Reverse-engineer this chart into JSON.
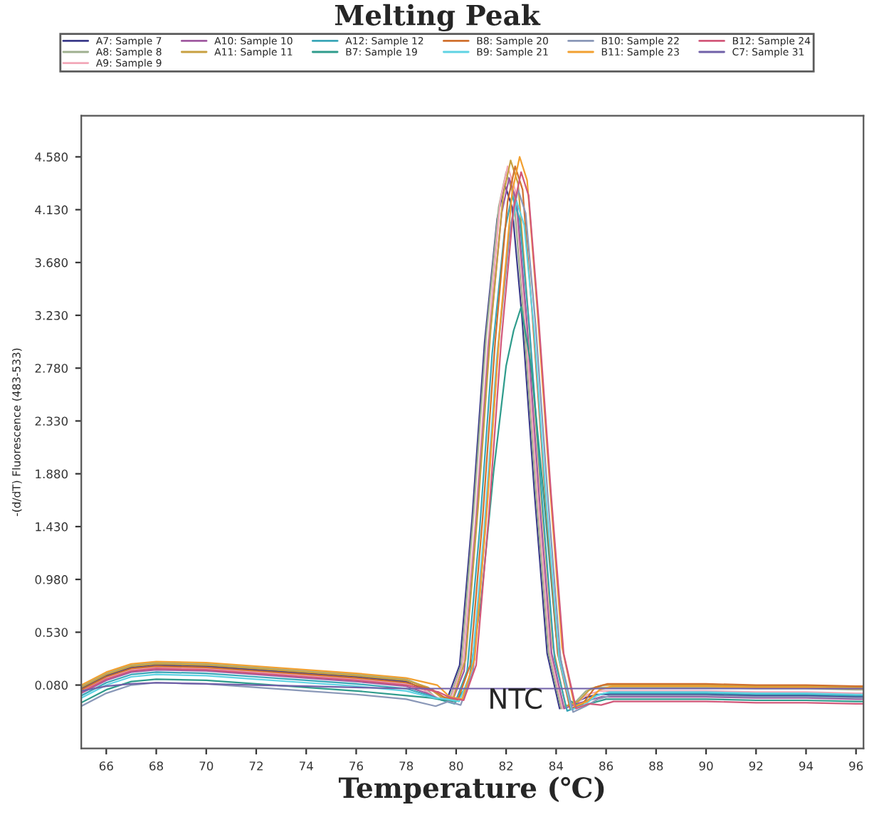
{
  "chart_data": {
    "type": "line",
    "title": "Melting Peak",
    "xlabel": "Temperature (℃)",
    "ylabel": "-(d/dT) Fluorescence (483-533)",
    "x": [
      65,
      66,
      67,
      68,
      70,
      72,
      74,
      76,
      78,
      79,
      79.5,
      80,
      80.5,
      81,
      81.5,
      82,
      82.3,
      82.6,
      83,
      83.5,
      84,
      84.5,
      85,
      85.5,
      86,
      88,
      90,
      92,
      94,
      96,
      96.3
    ],
    "series": [
      {
        "name": "A7: Sample 7",
        "color": "#3a3a8a",
        "x": [
          65,
          66,
          67,
          68,
          70,
          72,
          74,
          76,
          78,
          78.64,
          79.14,
          79.64,
          80.14,
          80.64,
          81.14,
          81.64,
          81.94,
          82.24,
          82.64,
          83.14,
          83.64,
          84.14,
          84.64,
          85.14,
          85.64,
          88,
          90,
          92,
          94,
          96,
          96.3
        ],
        "values": [
          0.05,
          0.16,
          0.23,
          0.25,
          0.24,
          0.21,
          0.18,
          0.15,
          0.11,
          0.05,
          -0.03,
          -0.04,
          0.25,
          1.5,
          3.0,
          4.05,
          4.35,
          4.15,
          3.2,
          1.7,
          0.35,
          -0.12,
          -0.08,
          -0.03,
          0.0,
          0.0,
          0.0,
          -0.01,
          -0.01,
          -0.02,
          -0.02
        ]
      },
      {
        "name": "A8: Sample 8",
        "color": "#9fb08f",
        "x": [
          65,
          66,
          67,
          68,
          70,
          72,
          74,
          76,
          78,
          78.7,
          79.2,
          79.7,
          80.2,
          80.7,
          81.2,
          81.7,
          82.0,
          82.3,
          82.7,
          83.2,
          83.7,
          84.2,
          84.7,
          85.2,
          85.7,
          88,
          90,
          92,
          94,
          96,
          96.3
        ],
        "values": [
          0.07,
          0.18,
          0.25,
          0.27,
          0.26,
          0.23,
          0.2,
          0.17,
          0.13,
          0.07,
          -0.03,
          -0.06,
          0.25,
          1.55,
          3.05,
          4.15,
          4.45,
          4.25,
          3.2,
          1.7,
          0.35,
          -0.12,
          -0.08,
          0.03,
          0.06,
          0.06,
          0.06,
          0.05,
          0.05,
          0.04,
          0.04
        ]
      },
      {
        "name": "A9: Sample 9",
        "color": "#f2a7b8",
        "x": [
          65,
          66,
          67,
          68,
          70,
          72,
          74,
          76,
          78,
          78.76,
          79.26,
          79.76,
          80.26,
          80.76,
          81.26,
          81.76,
          82.06,
          82.36,
          82.76,
          83.26,
          83.76,
          84.26,
          84.76,
          85.26,
          85.76,
          88,
          90,
          92,
          94,
          96,
          96.3
        ],
        "values": [
          0.03,
          0.14,
          0.21,
          0.23,
          0.22,
          0.19,
          0.16,
          0.13,
          0.09,
          0.03,
          -0.03,
          -0.05,
          0.25,
          1.45,
          2.95,
          4.2,
          4.5,
          4.3,
          3.2,
          1.7,
          0.35,
          -0.12,
          -0.08,
          0.0,
          0.03,
          0.03,
          0.03,
          0.02,
          0.02,
          0.01,
          0.01
        ]
      },
      {
        "name": "A10: Sample 10",
        "color": "#a05aa0",
        "x": [
          65,
          66,
          67,
          68,
          70,
          72,
          74,
          76,
          78,
          78.82,
          79.32,
          79.82,
          80.32,
          80.82,
          81.32,
          81.82,
          82.12,
          82.42,
          82.82,
          83.32,
          83.82,
          84.32,
          84.82,
          85.32,
          85.82,
          88,
          90,
          92,
          94,
          96,
          96.3
        ],
        "values": [
          0.01,
          0.12,
          0.19,
          0.21,
          0.2,
          0.17,
          0.14,
          0.11,
          0.07,
          0.01,
          -0.04,
          -0.07,
          0.2,
          1.5,
          3.0,
          4.1,
          4.4,
          4.2,
          3.2,
          1.7,
          0.35,
          -0.12,
          -0.08,
          -0.05,
          -0.02,
          -0.02,
          -0.02,
          -0.03,
          -0.03,
          -0.04,
          -0.04
        ]
      },
      {
        "name": "A11: Sample 11",
        "color": "#c8a040",
        "x": [
          65,
          66,
          67,
          68,
          70,
          72,
          74,
          76,
          78,
          78.88,
          79.38,
          79.88,
          80.38,
          80.88,
          81.38,
          81.88,
          82.18,
          82.48,
          82.88,
          83.38,
          83.88,
          84.38,
          84.88,
          85.38,
          85.88,
          88,
          90,
          92,
          94,
          96,
          96.3
        ],
        "values": [
          0.06,
          0.17,
          0.24,
          0.26,
          0.25,
          0.22,
          0.19,
          0.16,
          0.12,
          0.06,
          -0.02,
          -0.03,
          0.3,
          1.6,
          3.1,
          4.25,
          4.55,
          4.35,
          3.25,
          1.75,
          0.4,
          -0.1,
          -0.06,
          0.05,
          0.08,
          0.08,
          0.08,
          0.07,
          0.07,
          0.06,
          0.06
        ]
      },
      {
        "name": "A12: Sample 12",
        "color": "#3aa6b8",
        "x": [
          65,
          66,
          67,
          68,
          70,
          72,
          74,
          76,
          78,
          78.94,
          79.44,
          79.94,
          80.44,
          80.94,
          81.44,
          81.94,
          82.24,
          82.54,
          82.94,
          83.44,
          83.94,
          84.44,
          84.94,
          85.44,
          85.94,
          88,
          90,
          92,
          94,
          96,
          96.3
        ],
        "values": [
          -0.01,
          0.1,
          0.17,
          0.19,
          0.18,
          0.15,
          0.12,
          0.09,
          0.05,
          -0.01,
          -0.05,
          -0.08,
          0.2,
          1.4,
          2.9,
          3.95,
          4.25,
          4.05,
          3.1,
          1.65,
          0.3,
          -0.14,
          -0.1,
          -0.02,
          0.01,
          0.01,
          0.01,
          0.0,
          0.0,
          -0.01,
          -0.01
        ]
      },
      {
        "name": "B7: Sample 19",
        "color": "#2f9c8c",
        "values": [
          -0.07,
          0.04,
          0.11,
          0.13,
          0.12,
          0.09,
          0.06,
          0.03,
          -0.01,
          -0.03,
          -0.05,
          -0.06,
          0.1,
          0.8,
          1.9,
          2.8,
          3.1,
          3.3,
          2.8,
          1.7,
          0.5,
          -0.05,
          -0.1,
          -0.07,
          -0.04,
          -0.04,
          -0.04,
          -0.05,
          -0.05,
          -0.06,
          -0.06
        ]
      },
      {
        "name": "B8: Sample 20",
        "color": "#d0702e",
        "x": [
          65,
          66,
          67,
          68,
          70,
          72,
          74,
          76,
          78,
          79.06,
          79.56,
          80.06,
          80.56,
          81.06,
          81.56,
          82.06,
          82.36,
          82.66,
          83.06,
          83.56,
          84.06,
          84.56,
          85.06,
          85.56,
          86.06,
          88,
          90,
          92,
          94,
          96,
          96.3
        ],
        "values": [
          0.04,
          0.15,
          0.22,
          0.24,
          0.23,
          0.2,
          0.17,
          0.14,
          0.1,
          0.04,
          -0.03,
          -0.05,
          0.25,
          1.5,
          3.0,
          4.2,
          4.5,
          4.3,
          3.2,
          1.7,
          0.35,
          -0.12,
          -0.08,
          0.06,
          0.09,
          0.09,
          0.09,
          0.08,
          0.08,
          0.07,
          0.07
        ]
      },
      {
        "name": "B9: Sample 21",
        "color": "#5fd3e3",
        "x": [
          65,
          66,
          67,
          68,
          70,
          72,
          74,
          76,
          78,
          79.12,
          79.62,
          80.12,
          80.62,
          81.12,
          81.62,
          82.12,
          82.42,
          82.72,
          83.12,
          83.62,
          84.12,
          84.62,
          85.12,
          85.62,
          86.12,
          88,
          90,
          92,
          94,
          96,
          96.3
        ],
        "values": [
          -0.03,
          0.08,
          0.15,
          0.17,
          0.16,
          0.13,
          0.1,
          0.07,
          0.03,
          -0.03,
          -0.04,
          -0.06,
          0.2,
          1.4,
          2.85,
          3.9,
          4.2,
          4.0,
          3.1,
          1.6,
          0.3,
          -0.13,
          -0.09,
          -0.01,
          0.02,
          0.02,
          0.02,
          0.01,
          0.01,
          0.0,
          0.0
        ]
      },
      {
        "name": "B10: Sample 22",
        "color": "#8a98b8",
        "x": [
          65,
          66,
          67,
          68,
          70,
          72,
          74,
          76,
          78,
          79.18,
          79.68,
          80.18,
          80.68,
          81.18,
          81.68,
          82.18,
          82.48,
          82.78,
          83.18,
          83.68,
          84.18,
          84.68,
          85.18,
          85.68,
          86.18,
          88,
          90,
          92,
          94,
          96,
          96.3
        ],
        "values": [
          -0.1,
          0.01,
          0.08,
          0.1,
          0.09,
          0.06,
          0.03,
          0.0,
          -0.04,
          -0.1,
          -0.06,
          -0.09,
          0.2,
          1.45,
          2.95,
          4.0,
          4.3,
          4.1,
          3.15,
          1.65,
          0.3,
          -0.15,
          -0.1,
          -0.04,
          -0.01,
          -0.01,
          -0.01,
          -0.02,
          -0.02,
          -0.03,
          -0.03
        ]
      },
      {
        "name": "B11: Sample 23",
        "color": "#f2a030",
        "x": [
          65,
          66,
          67,
          68,
          70,
          72,
          74,
          76,
          78,
          79.24,
          79.74,
          80.24,
          80.74,
          81.24,
          81.74,
          82.24,
          82.54,
          82.84,
          83.24,
          83.74,
          84.24,
          84.74,
          85.24,
          85.74,
          86.24,
          88,
          90,
          92,
          94,
          96,
          96.3
        ],
        "values": [
          0.08,
          0.19,
          0.26,
          0.28,
          0.27,
          0.24,
          0.21,
          0.18,
          0.14,
          0.08,
          -0.02,
          -0.04,
          0.3,
          1.6,
          3.1,
          4.28,
          4.58,
          4.38,
          3.3,
          1.8,
          0.4,
          -0.1,
          -0.06,
          0.04,
          0.07,
          0.07,
          0.07,
          0.06,
          0.06,
          0.05,
          0.05
        ]
      },
      {
        "name": "B12: Sample 24",
        "color": "#d2587a",
        "x": [
          65,
          66,
          67,
          68,
          70,
          72,
          74,
          76,
          78,
          79.3,
          79.8,
          80.3,
          80.8,
          81.3,
          81.8,
          82.3,
          82.6,
          82.9,
          83.3,
          83.8,
          84.3,
          84.8,
          85.3,
          85.8,
          86.3,
          88,
          90,
          92,
          94,
          96,
          96.3
        ],
        "values": [
          0.02,
          0.13,
          0.2,
          0.22,
          0.21,
          0.18,
          0.15,
          0.12,
          0.08,
          0.02,
          -0.03,
          -0.05,
          0.25,
          1.5,
          3.0,
          4.15,
          4.45,
          4.25,
          3.2,
          1.7,
          0.35,
          -0.12,
          -0.08,
          -0.09,
          -0.06,
          -0.06,
          -0.06,
          -0.07,
          -0.07,
          -0.08,
          -0.08
        ]
      },
      {
        "name": "C7: Sample 31",
        "color": "#7060a8",
        "values": [
          0.03,
          0.07,
          0.09,
          0.1,
          0.09,
          0.08,
          0.07,
          0.06,
          0.05,
          0.05,
          0.05,
          0.05,
          0.05,
          0.05,
          0.05,
          0.05,
          0.05,
          0.05,
          0.05,
          0.05,
          0.05,
          0.05,
          0.05,
          0.05,
          0.05,
          0.05,
          0.05,
          0.05,
          0.05,
          0.05,
          0.05
        ]
      }
    ],
    "xlim": [
      65,
      96.3
    ],
    "xticks": [
      66,
      68,
      70,
      72,
      74,
      76,
      78,
      80,
      82,
      84,
      86,
      88,
      90,
      92,
      94,
      96
    ],
    "ylim": [
      -0.46,
      4.93
    ],
    "yticks": [
      {
        "value": 0.08,
        "label": "0.080"
      },
      {
        "value": 0.53,
        "label": "0.530"
      },
      {
        "value": 0.98,
        "label": "0.980"
      },
      {
        "value": 1.43,
        "label": "1.430"
      },
      {
        "value": 1.88,
        "label": "1.880"
      },
      {
        "value": 2.33,
        "label": "2.330"
      },
      {
        "value": 2.78,
        "label": "2.780"
      },
      {
        "value": 3.23,
        "label": "3.230"
      },
      {
        "value": 3.68,
        "label": "3.680"
      },
      {
        "value": 4.13,
        "label": "4.130"
      },
      {
        "value": 4.58,
        "label": "4.580"
      }
    ],
    "annotations": [
      "NTC"
    ],
    "legend": "top",
    "grid": false
  }
}
